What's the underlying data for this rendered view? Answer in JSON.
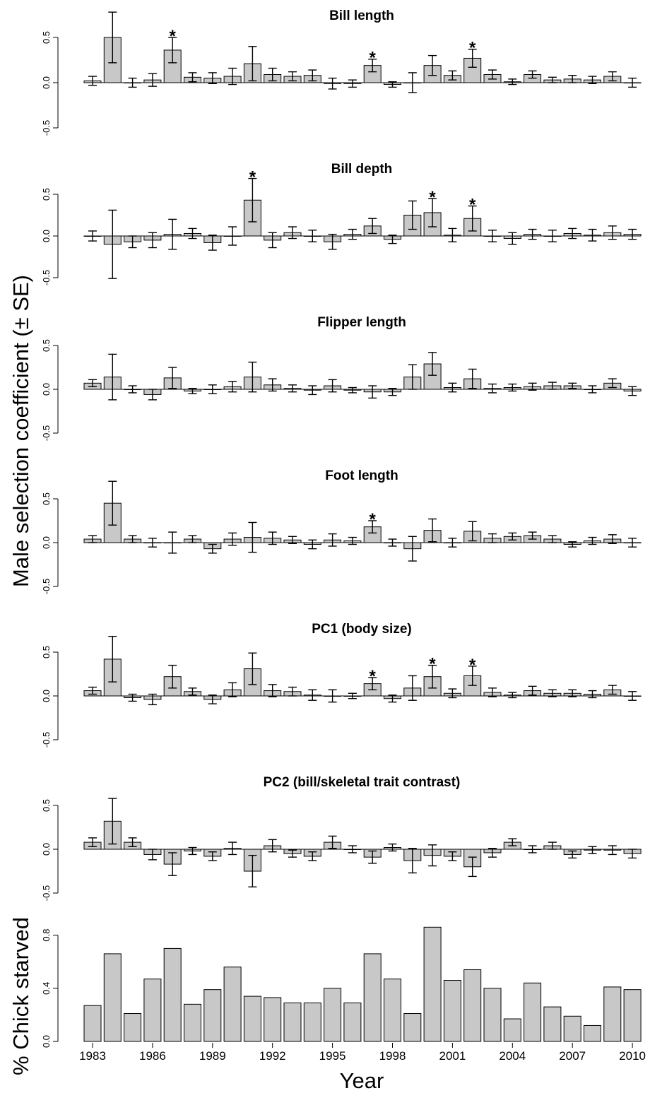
{
  "chart_data": [
    {
      "type": "bar",
      "title": "Bill length",
      "ylim": [
        -0.5,
        0.5
      ],
      "yticks": [
        "-0.5",
        "0.0",
        "0.5"
      ],
      "x": [
        1983,
        1984,
        1985,
        1986,
        1987,
        1988,
        1989,
        1990,
        1991,
        1992,
        1993,
        1994,
        1995,
        1996,
        1997,
        1998,
        1999,
        2000,
        2001,
        2002,
        2003,
        2004,
        2005,
        2006,
        2007,
        2008,
        2009,
        2010
      ],
      "values": [
        0.02,
        0.5,
        0.0,
        0.03,
        0.36,
        0.06,
        0.05,
        0.07,
        0.21,
        0.09,
        0.07,
        0.08,
        -0.01,
        -0.01,
        0.19,
        -0.02,
        0.0,
        0.19,
        0.08,
        0.27,
        0.09,
        0.01,
        0.09,
        0.03,
        0.04,
        0.03,
        0.07,
        0.0
      ],
      "se": [
        0.05,
        0.28,
        0.05,
        0.07,
        0.14,
        0.05,
        0.06,
        0.09,
        0.19,
        0.07,
        0.05,
        0.06,
        0.06,
        0.04,
        0.07,
        0.03,
        0.11,
        0.11,
        0.05,
        0.1,
        0.05,
        0.03,
        0.04,
        0.03,
        0.04,
        0.04,
        0.05,
        0.05
      ],
      "significant": [
        1987,
        1997,
        2002
      ]
    },
    {
      "type": "bar",
      "title": "Bill depth",
      "ylim": [
        -0.5,
        0.5
      ],
      "yticks": [
        "-0.5",
        "0.0",
        "0.5"
      ],
      "x": [
        1983,
        1984,
        1985,
        1986,
        1987,
        1988,
        1989,
        1990,
        1991,
        1992,
        1993,
        1994,
        1995,
        1996,
        1997,
        1998,
        1999,
        2000,
        2001,
        2002,
        2003,
        2004,
        2005,
        2006,
        2007,
        2008,
        2009,
        2010
      ],
      "values": [
        0.0,
        -0.1,
        -0.07,
        -0.05,
        0.02,
        0.03,
        -0.08,
        0.0,
        0.43,
        -0.05,
        0.04,
        0.0,
        -0.07,
        0.02,
        0.12,
        -0.04,
        0.25,
        0.28,
        0.01,
        0.21,
        0.0,
        -0.03,
        0.02,
        0.0,
        0.03,
        0.01,
        0.04,
        0.02
      ],
      "se": [
        0.06,
        0.41,
        0.07,
        0.09,
        0.18,
        0.06,
        0.09,
        0.11,
        0.26,
        0.09,
        0.07,
        0.07,
        0.09,
        0.06,
        0.09,
        0.05,
        0.17,
        0.17,
        0.08,
        0.15,
        0.07,
        0.07,
        0.06,
        0.07,
        0.06,
        0.07,
        0.08,
        0.06
      ],
      "significant": [
        1991,
        2000,
        2002
      ]
    },
    {
      "type": "bar",
      "title": "Flipper length",
      "ylim": [
        -0.5,
        0.5
      ],
      "yticks": [
        "-0.5",
        "0.0",
        "0.5"
      ],
      "x": [
        1983,
        1984,
        1985,
        1986,
        1987,
        1988,
        1989,
        1990,
        1991,
        1992,
        1993,
        1994,
        1995,
        1996,
        1997,
        1998,
        1999,
        2000,
        2001,
        2002,
        2003,
        2004,
        2005,
        2006,
        2007,
        2008,
        2009,
        2010
      ],
      "values": [
        0.07,
        0.14,
        0.0,
        -0.06,
        0.13,
        -0.02,
        0.0,
        0.03,
        0.14,
        0.05,
        0.01,
        -0.01,
        0.04,
        -0.01,
        -0.03,
        -0.03,
        0.14,
        0.29,
        0.02,
        0.12,
        0.01,
        0.02,
        0.03,
        0.04,
        0.04,
        0.0,
        0.07,
        -0.02
      ],
      "se": [
        0.04,
        0.26,
        0.04,
        0.06,
        0.12,
        0.03,
        0.05,
        0.06,
        0.17,
        0.07,
        0.04,
        0.05,
        0.07,
        0.03,
        0.07,
        0.04,
        0.14,
        0.13,
        0.05,
        0.11,
        0.05,
        0.04,
        0.04,
        0.04,
        0.03,
        0.04,
        0.05,
        0.05
      ],
      "significant": []
    },
    {
      "type": "bar",
      "title": "Foot length",
      "ylim": [
        -0.5,
        0.5
      ],
      "yticks": [
        "-0.5",
        "0.0",
        "0.5"
      ],
      "x": [
        1983,
        1984,
        1985,
        1986,
        1987,
        1988,
        1989,
        1990,
        1991,
        1992,
        1993,
        1994,
        1995,
        1996,
        1997,
        1998,
        1999,
        2000,
        2001,
        2002,
        2003,
        2004,
        2005,
        2006,
        2007,
        2008,
        2009,
        2010
      ],
      "values": [
        0.04,
        0.45,
        0.04,
        0.0,
        0.0,
        0.04,
        -0.07,
        0.04,
        0.06,
        0.05,
        0.03,
        -0.02,
        0.03,
        0.02,
        0.18,
        0.0,
        -0.07,
        0.14,
        0.0,
        0.13,
        0.05,
        0.07,
        0.08,
        0.04,
        -0.02,
        0.02,
        0.04,
        0.0
      ],
      "se": [
        0.04,
        0.25,
        0.04,
        0.05,
        0.12,
        0.04,
        0.05,
        0.07,
        0.17,
        0.07,
        0.04,
        0.05,
        0.07,
        0.04,
        0.07,
        0.04,
        0.14,
        0.13,
        0.05,
        0.11,
        0.05,
        0.04,
        0.04,
        0.04,
        0.03,
        0.04,
        0.05,
        0.05
      ],
      "significant": [
        1997
      ]
    },
    {
      "type": "bar",
      "title": "PC1 (body size)",
      "ylim": [
        -0.5,
        0.5
      ],
      "yticks": [
        "-0.5",
        "0.0",
        "0.5"
      ],
      "x": [
        1983,
        1984,
        1985,
        1986,
        1987,
        1988,
        1989,
        1990,
        1991,
        1992,
        1993,
        1994,
        1995,
        1996,
        1997,
        1998,
        1999,
        2000,
        2001,
        2002,
        2003,
        2004,
        2005,
        2006,
        2007,
        2008,
        2009,
        2010
      ],
      "values": [
        0.06,
        0.42,
        -0.02,
        -0.04,
        0.22,
        0.05,
        -0.04,
        0.07,
        0.31,
        0.06,
        0.05,
        0.01,
        0.0,
        0.0,
        0.14,
        -0.03,
        0.09,
        0.22,
        0.03,
        0.23,
        0.04,
        0.01,
        0.06,
        0.03,
        0.03,
        0.02,
        0.07,
        0.0
      ],
      "se": [
        0.04,
        0.26,
        0.04,
        0.06,
        0.13,
        0.04,
        0.05,
        0.08,
        0.18,
        0.07,
        0.05,
        0.06,
        0.07,
        0.03,
        0.07,
        0.04,
        0.14,
        0.13,
        0.05,
        0.11,
        0.05,
        0.03,
        0.05,
        0.04,
        0.04,
        0.04,
        0.05,
        0.05
      ],
      "significant": [
        1997,
        2000,
        2002
      ]
    },
    {
      "type": "bar",
      "title": "PC2 (bill/skeletal trait contrast)",
      "ylim": [
        -0.5,
        0.5
      ],
      "yticks": [
        "-0.5",
        "0.0",
        "0.5"
      ],
      "x": [
        1983,
        1984,
        1985,
        1986,
        1987,
        1988,
        1989,
        1990,
        1991,
        1992,
        1993,
        1994,
        1995,
        1996,
        1997,
        1998,
        1999,
        2000,
        2001,
        2002,
        2003,
        2004,
        2005,
        2006,
        2007,
        2008,
        2009,
        2010
      ],
      "values": [
        0.08,
        0.32,
        0.08,
        -0.06,
        -0.17,
        -0.02,
        -0.08,
        0.01,
        -0.25,
        0.04,
        -0.05,
        -0.08,
        0.08,
        0.0,
        -0.09,
        0.02,
        -0.13,
        -0.07,
        -0.08,
        -0.2,
        -0.04,
        0.08,
        0.0,
        0.04,
        -0.06,
        -0.01,
        -0.01,
        -0.05
      ],
      "se": [
        0.05,
        0.26,
        0.05,
        0.06,
        0.13,
        0.04,
        0.05,
        0.07,
        0.18,
        0.07,
        0.04,
        0.05,
        0.07,
        0.04,
        0.07,
        0.04,
        0.14,
        0.12,
        0.05,
        0.11,
        0.05,
        0.04,
        0.04,
        0.04,
        0.04,
        0.04,
        0.05,
        0.05
      ],
      "significant": []
    },
    {
      "type": "bar",
      "title": "",
      "ylabel": "% Chick starved",
      "ylim": [
        0,
        0.9
      ],
      "yticks": [
        "0.0",
        "0.4",
        "0.8"
      ],
      "x": [
        1983,
        1984,
        1985,
        1986,
        1987,
        1988,
        1989,
        1990,
        1991,
        1992,
        1993,
        1994,
        1995,
        1996,
        1997,
        1998,
        1999,
        2000,
        2001,
        2002,
        2003,
        2004,
        2005,
        2006,
        2007,
        2008,
        2009,
        2010
      ],
      "values": [
        0.27,
        0.66,
        0.21,
        0.47,
        0.7,
        0.28,
        0.39,
        0.56,
        0.34,
        0.33,
        0.29,
        0.29,
        0.4,
        0.29,
        0.66,
        0.47,
        0.21,
        0.86,
        0.46,
        0.54,
        0.4,
        0.17,
        0.44,
        0.26,
        0.19,
        0.12,
        0.41,
        0.39
      ]
    }
  ],
  "axes": {
    "ylabel": "Male selection coefficient (± SE)",
    "xlabel": "Year",
    "x_tick_labels": [
      "1983",
      "1986",
      "1989",
      "1992",
      "1995",
      "1998",
      "2001",
      "2004",
      "2007",
      "2010"
    ]
  },
  "colors": {
    "bar_fill": "#c8c8c8",
    "stroke": "#000000"
  }
}
